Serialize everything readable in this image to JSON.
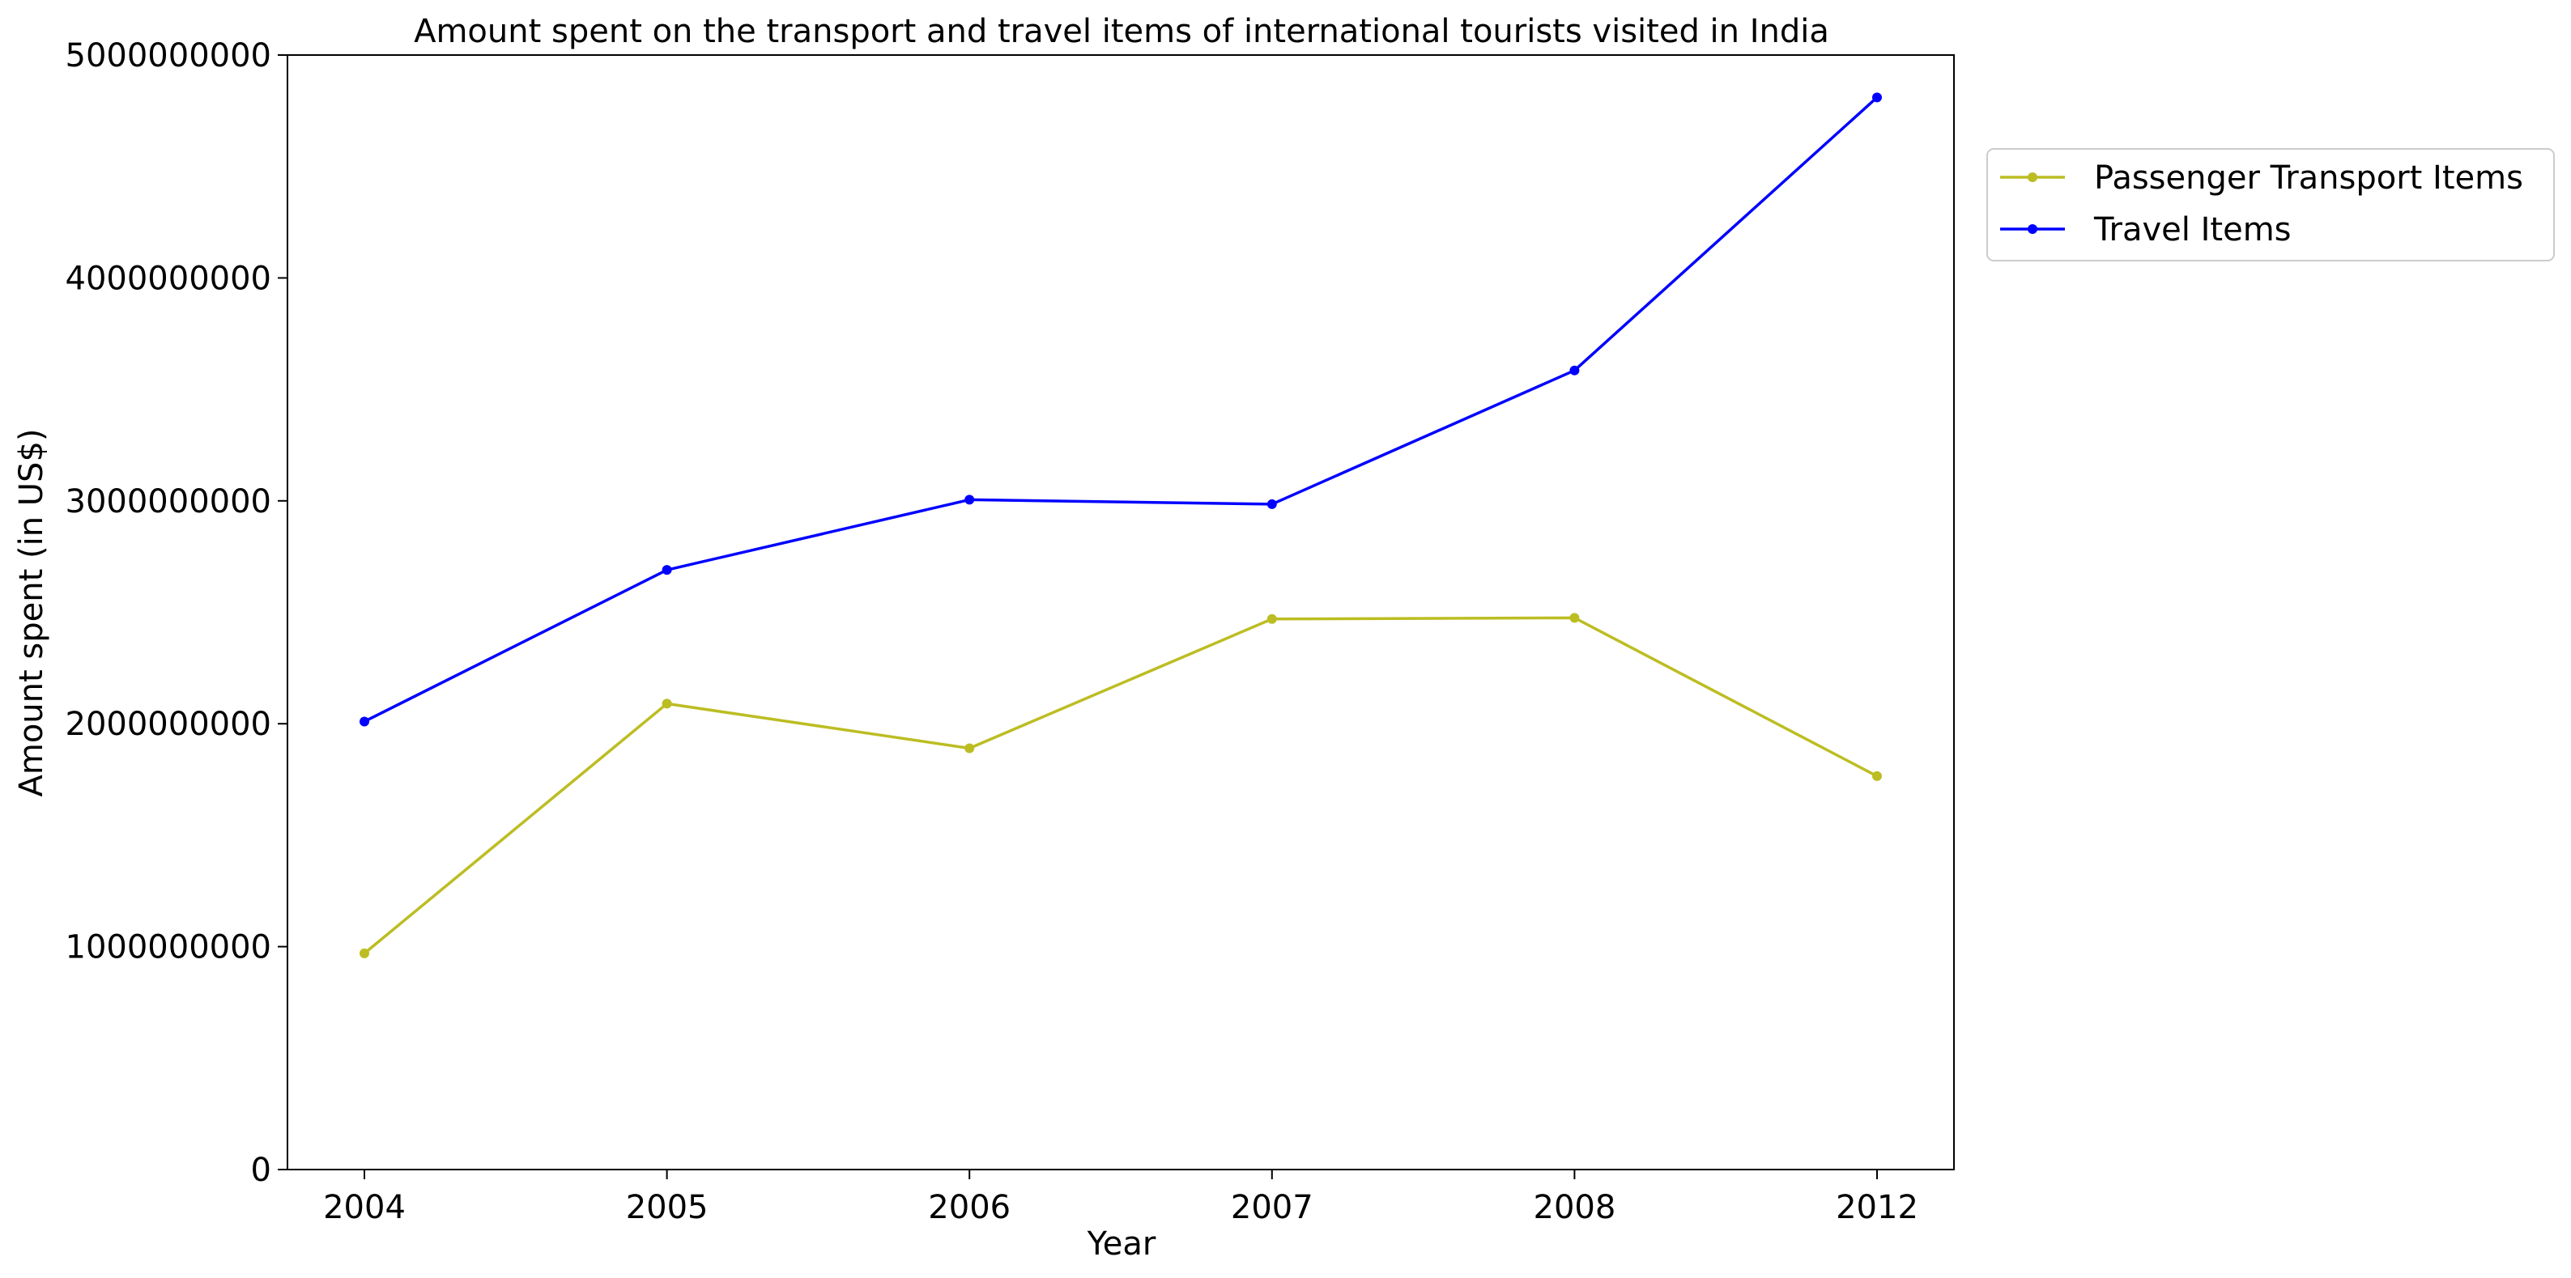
{
  "chart_data": {
    "type": "line",
    "title": "Amount spent on the transport and travel items of international tourists visited in India",
    "xlabel": "Year",
    "ylabel": "Amount spent (in US$)",
    "categories": [
      "2004",
      "2005",
      "2006",
      "2007",
      "2008",
      "2012"
    ],
    "ylim": [
      0,
      5000000000
    ],
    "yticks": [
      0,
      1000000000,
      2000000000,
      3000000000,
      4000000000,
      5000000000
    ],
    "ytick_labels": [
      "0",
      "1000000000",
      "2000000000",
      "3000000000",
      "4000000000",
      "5000000000"
    ],
    "grid": false,
    "legend_position": "outside-top-right",
    "series": [
      {
        "name": "Passenger Transport Items",
        "color": "#bcbd22",
        "values": [
          970000000,
          2090000000,
          1890000000,
          2470000000,
          2475000000,
          1765000000
        ]
      },
      {
        "name": "Travel Items",
        "color": "#0000ff",
        "values": [
          2010000000,
          2690000000,
          3005000000,
          2985000000,
          3585000000,
          4810000000
        ]
      }
    ]
  }
}
